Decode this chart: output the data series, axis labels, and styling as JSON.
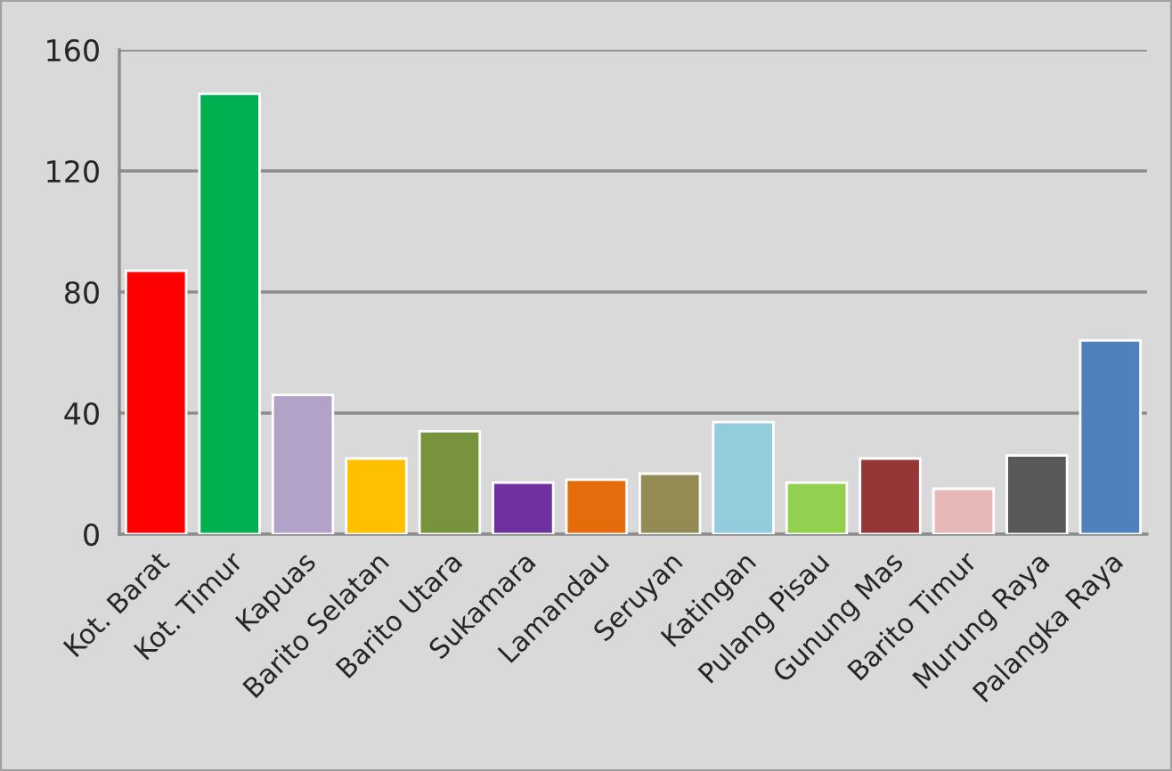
{
  "chart_data": {
    "type": "bar",
    "categories": [
      "Kot. Barat",
      "Kot. Timur",
      "Kapuas",
      "Barito Selatan",
      "Barito Utara",
      "Sukamara",
      "Lamandau",
      "Seruyan",
      "Katingan",
      "Pulang Pisau",
      "Gunung Mas",
      "Barito Timur",
      "Murung Raya",
      "Palangka Raya"
    ],
    "values": [
      87,
      145.5,
      46,
      25,
      34,
      17,
      18,
      20,
      37,
      17,
      25,
      15,
      26,
      64
    ],
    "colors": [
      "#ff0000",
      "#00b050",
      "#b3a2c7",
      "#ffc000",
      "#77933c",
      "#7030a0",
      "#e46c0a",
      "#948a54",
      "#93cddd",
      "#92d050",
      "#953735",
      "#e6b9b8",
      "#595959",
      "#4f81bd"
    ],
    "ylim": [
      0,
      160
    ],
    "yticks": [
      0,
      40,
      80,
      120,
      160
    ],
    "grid": "y",
    "legend": false
  }
}
